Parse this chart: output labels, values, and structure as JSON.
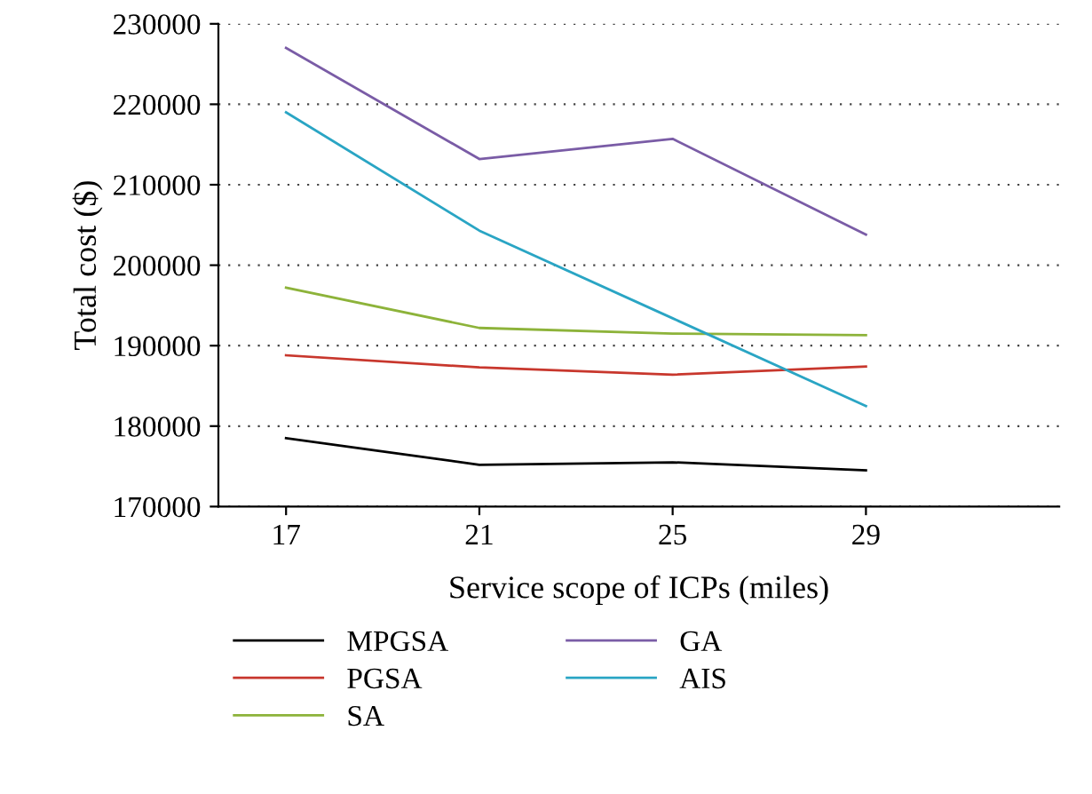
{
  "chart_data": {
    "type": "line",
    "xlabel": "Service scope of ICPs (miles)",
    "ylabel": "Total cost ($)",
    "x": [
      17,
      21,
      25,
      29
    ],
    "xlim": [
      15.6,
      33
    ],
    "xticks": [
      17,
      21,
      25,
      29
    ],
    "ylim": [
      170000,
      230000
    ],
    "yticks": [
      170000,
      180000,
      190000,
      200000,
      210000,
      220000,
      230000
    ],
    "grid": "y",
    "legend": "bottom",
    "marker": "none",
    "line_style": "solid",
    "series": [
      {
        "name": "MPGSA",
        "color": "#000000",
        "values": [
          178500,
          175200,
          175500,
          174500
        ]
      },
      {
        "name": "PGSA",
        "color": "#c8372d",
        "values": [
          188800,
          187300,
          186400,
          187400
        ]
      },
      {
        "name": "SA",
        "color": "#8db33a",
        "values": [
          197200,
          192200,
          191500,
          191300
        ]
      },
      {
        "name": "GA",
        "color": "#7a5ca6",
        "values": [
          227000,
          213200,
          215700,
          203800
        ]
      },
      {
        "name": "AIS",
        "color": "#2aa5c4",
        "values": [
          219000,
          204300,
          193400,
          182500
        ]
      }
    ]
  }
}
